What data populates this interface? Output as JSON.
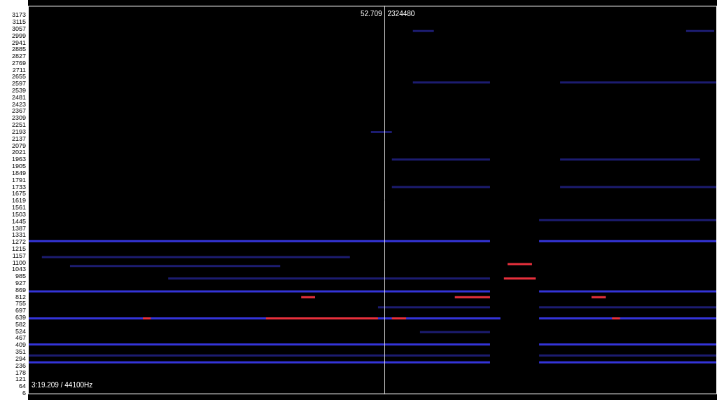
{
  "chart_data": {
    "type": "spectrogram",
    "xlim": [
      43.7,
      61.1
    ],
    "ylim": [
      0,
      3250
    ],
    "yticks": [
      3173,
      3115,
      3057,
      2999,
      2941,
      2885,
      2827,
      2769,
      2711,
      2655,
      2597,
      2539,
      2481,
      2423,
      2367,
      2309,
      2251,
      2193,
      2137,
      2079,
      2021,
      1963,
      1905,
      1849,
      1791,
      1733,
      1675,
      1619,
      1561,
      1503,
      1445,
      1387,
      1331,
      1272,
      1215,
      1157,
      1100,
      1043,
      985,
      927,
      869,
      812,
      755,
      697,
      639,
      582,
      524,
      467,
      409,
      351,
      294,
      236,
      178,
      121,
      64,
      6
    ],
    "tick_labels": "y",
    "grid": false,
    "cursor": {
      "time": 52.709,
      "sample": 2324480
    },
    "info": "3:19.209 / 44100Hz",
    "series": [
      {
        "color": "#1c1c70",
        "segments": [
          {
            "freq": 2609,
            "start": 53.42,
            "end": 55.37
          },
          {
            "freq": 2609,
            "start": 57.14,
            "end": 61.1
          },
          {
            "freq": 1734,
            "start": 52.89,
            "end": 55.37
          },
          {
            "freq": 1734,
            "start": 57.14,
            "end": 61.1
          },
          {
            "freq": 1964,
            "start": 52.89,
            "end": 55.37
          },
          {
            "freq": 1964,
            "start": 57.14,
            "end": 60.67
          },
          {
            "freq": 2194,
            "start": 52.36,
            "end": 52.89
          },
          {
            "freq": 3040,
            "start": 53.42,
            "end": 53.95
          },
          {
            "freq": 3040,
            "start": 60.32,
            "end": 61.03
          },
          {
            "freq": 1457,
            "start": 56.61,
            "end": 61.1
          },
          {
            "freq": 1147,
            "start": 44.05,
            "end": 51.83
          },
          {
            "freq": 1072,
            "start": 44.76,
            "end": 50.07
          },
          {
            "freq": 968,
            "start": 47.24,
            "end": 55.37
          },
          {
            "freq": 519,
            "start": 53.6,
            "end": 55.37
          },
          {
            "freq": 726,
            "start": 52.54,
            "end": 55.37
          },
          {
            "freq": 726,
            "start": 56.61,
            "end": 61.1
          },
          {
            "freq": 323,
            "start": 43.7,
            "end": 55.37
          },
          {
            "freq": 323,
            "start": 56.61,
            "end": 61.1
          }
        ]
      },
      {
        "color": "#3434d8",
        "segments": [
          {
            "freq": 1280,
            "start": 43.7,
            "end": 55.37
          },
          {
            "freq": 1280,
            "start": 56.61,
            "end": 61.1
          },
          {
            "freq": 634,
            "start": 43.7,
            "end": 55.63
          },
          {
            "freq": 634,
            "start": 56.61,
            "end": 61.1
          },
          {
            "freq": 859,
            "start": 43.7,
            "end": 55.37
          },
          {
            "freq": 859,
            "start": 56.61,
            "end": 61.1
          },
          {
            "freq": 415,
            "start": 43.7,
            "end": 55.37
          },
          {
            "freq": 415,
            "start": 56.61,
            "end": 61.1
          },
          {
            "freq": 266,
            "start": 43.7,
            "end": 55.37
          },
          {
            "freq": 266,
            "start": 56.61,
            "end": 61.1
          }
        ]
      },
      {
        "color": "#e8303c",
        "segments": [
          {
            "freq": 634,
            "start": 46.6,
            "end": 46.8
          },
          {
            "freq": 634,
            "start": 49.71,
            "end": 52.54
          },
          {
            "freq": 634,
            "start": 52.89,
            "end": 53.25
          },
          {
            "freq": 634,
            "start": 58.45,
            "end": 58.65
          },
          {
            "freq": 812,
            "start": 50.6,
            "end": 50.95
          },
          {
            "freq": 812,
            "start": 54.48,
            "end": 55.37
          },
          {
            "freq": 812,
            "start": 57.93,
            "end": 58.29
          },
          {
            "freq": 968,
            "start": 55.72,
            "end": 56.52
          },
          {
            "freq": 1089,
            "start": 55.81,
            "end": 56.43
          }
        ]
      }
    ]
  }
}
